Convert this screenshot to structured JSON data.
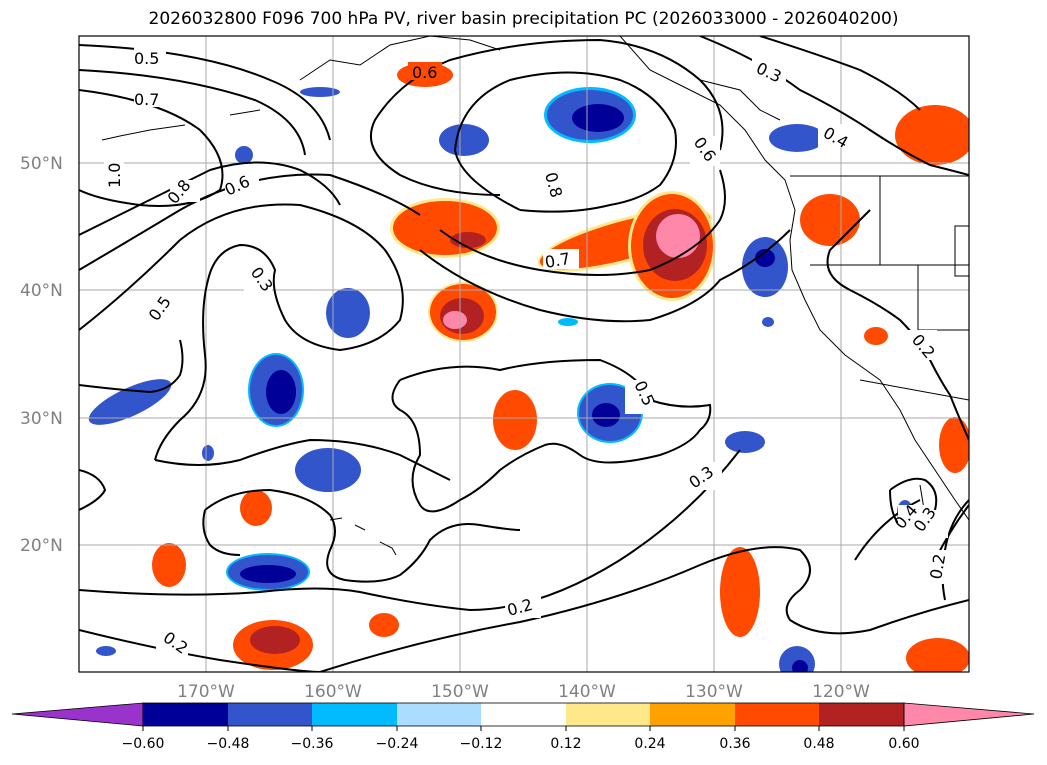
{
  "title": "2026032800 F096 700 hPa PV, river basin precipitation PC (2026033000 - 2026040200)",
  "map": {
    "lon_range": [
      -180,
      -110
    ],
    "lat_range": [
      10,
      60
    ],
    "lat_ticks": [
      {
        "value": 50,
        "label": "50°N"
      },
      {
        "value": 40,
        "label": "40°N"
      },
      {
        "value": 30,
        "label": "30°N"
      },
      {
        "value": 20,
        "label": "20°N"
      }
    ],
    "lon_ticks": [
      {
        "value": -170,
        "label": "170°W"
      },
      {
        "value": -160,
        "label": "160°W"
      },
      {
        "value": -150,
        "label": "150°W"
      },
      {
        "value": -140,
        "label": "140°W"
      },
      {
        "value": -130,
        "label": "130°W"
      },
      {
        "value": -120,
        "label": "120°W"
      }
    ],
    "contour_labels": [
      "0.5",
      "0.7",
      "1.0",
      "0.8",
      "0.6",
      "0.3",
      "0.5",
      "0.8",
      "0.7",
      "0.6",
      "0.6",
      "0.3",
      "0.4",
      "0.2",
      "0.5",
      "0.3",
      "0.2",
      "0.4",
      "0.3",
      "0.2",
      "0.2"
    ]
  },
  "colorbar": {
    "ticks": [
      "−0.60",
      "−0.48",
      "−0.36",
      "−0.24",
      "−0.12",
      "0.12",
      "0.24",
      "0.36",
      "0.48",
      "0.60"
    ],
    "colors": {
      "under": "#9933cc",
      "bins": [
        "#000099",
        "#3355cc",
        "#00bbff",
        "#aaddff",
        "#ffffff",
        "#ffe88a",
        "#ffa200",
        "#ff4a00",
        "#b22222",
        "#ff88aa"
      ],
      "over": "#ff88aa"
    }
  }
}
